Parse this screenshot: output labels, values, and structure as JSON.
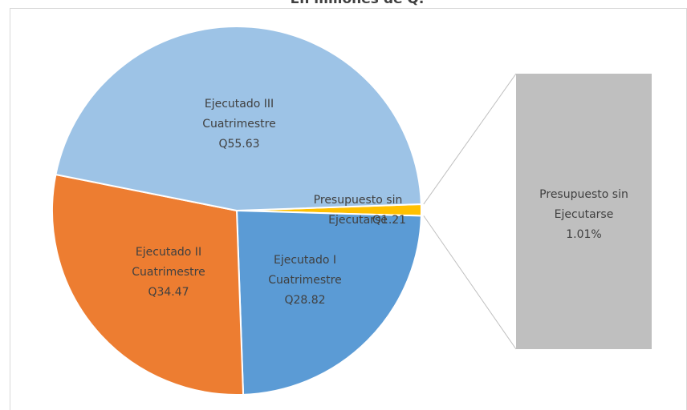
{
  "chart_data": {
    "type": "pie-of-bar",
    "title": "En millones de Q.",
    "categories": [
      "Presupuesto sin\nEjecutarse",
      "Ejecutado I\nCuatrimestre",
      "Ejecutado II\nCuatrimestre",
      "Ejecutado III\nCuatrimestre"
    ],
    "values": [
      1.21,
      28.82,
      34.47,
      55.63
    ],
    "value_labels": [
      "Q1.21",
      "Q28.82",
      "Q34.47",
      "Q55.63"
    ],
    "colors": [
      "#ffc000",
      "#5b9bd5",
      "#ed7d31",
      "#9dc3e6"
    ],
    "bar": {
      "label": "Presupuesto sin\nEjecutarse",
      "value": 1.01,
      "value_label": "1.01%",
      "color": "#bfbfbf"
    }
  }
}
